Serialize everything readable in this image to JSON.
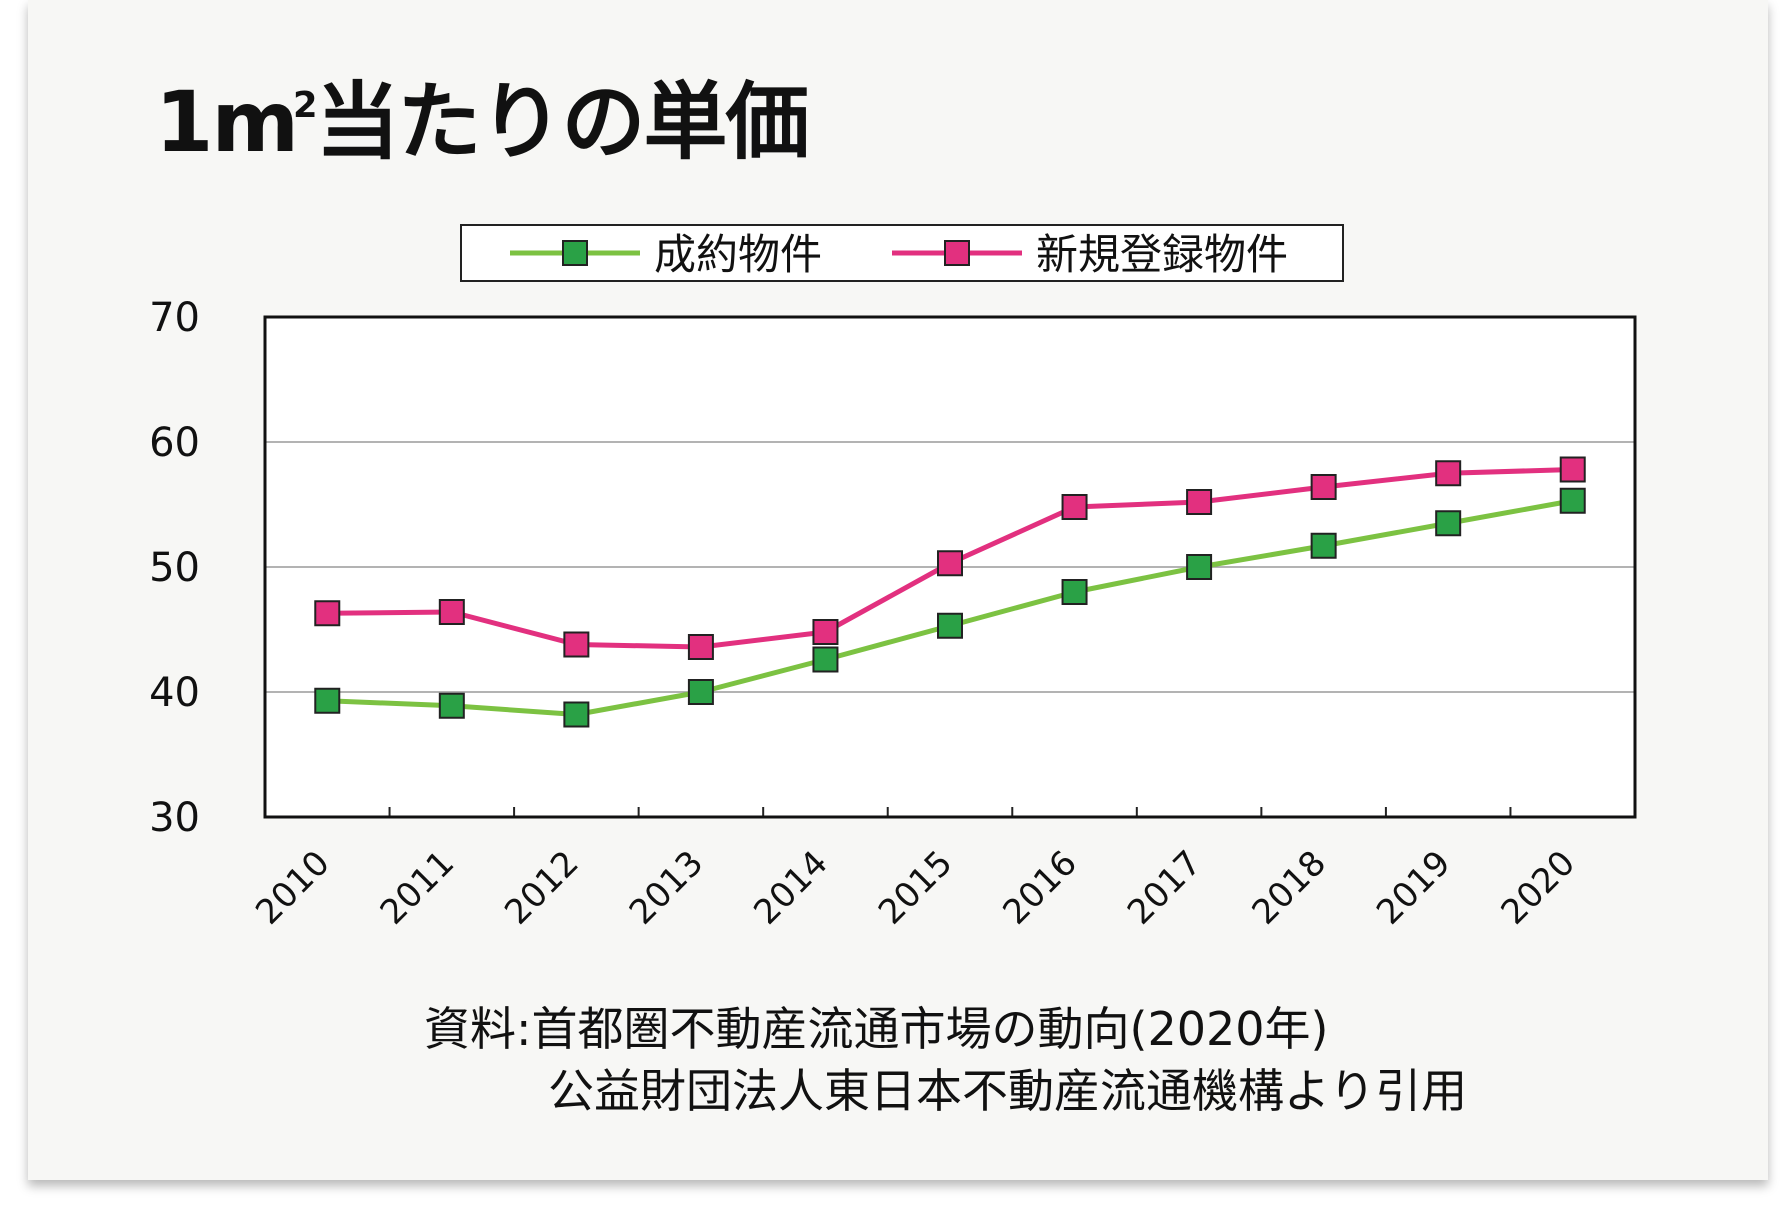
{
  "title": {
    "main": "1m",
    "superscript": "2",
    "rest": "当たりの単価"
  },
  "source": {
    "line1": "資料:首都圏不動産流通市場の動向(2020年)",
    "line2": "公益財団法人東日本不動産流通機構より引用"
  },
  "colors": {
    "contract": "#7cc242",
    "contract_marker": "#2aa146",
    "listing": "#e2307f",
    "listing_marker": "#e2307f",
    "background": "#f7f7f5"
  },
  "chart_data": {
    "type": "line",
    "title": "1m²当たりの単価",
    "xlabel": "",
    "ylabel": "",
    "categories": [
      "2010",
      "2011",
      "2012",
      "2013",
      "2014",
      "2015",
      "2016",
      "2017",
      "2018",
      "2019",
      "2020"
    ],
    "ylim": [
      30,
      70
    ],
    "yticks": [
      30,
      40,
      50,
      60,
      70
    ],
    "grid": true,
    "legend_position": "top",
    "series": [
      {
        "name": "成約物件",
        "color": "#7cc242",
        "marker": "square",
        "marker_color": "#2aa146",
        "values": [
          39.3,
          38.9,
          38.2,
          40.0,
          42.6,
          45.3,
          48.0,
          50.0,
          51.7,
          53.5,
          55.3
        ]
      },
      {
        "name": "新規登録物件",
        "color": "#e2307f",
        "marker": "square",
        "marker_color": "#e2307f",
        "values": [
          46.3,
          46.4,
          43.8,
          43.6,
          44.8,
          50.3,
          54.8,
          55.2,
          56.4,
          57.5,
          57.8
        ]
      }
    ]
  }
}
